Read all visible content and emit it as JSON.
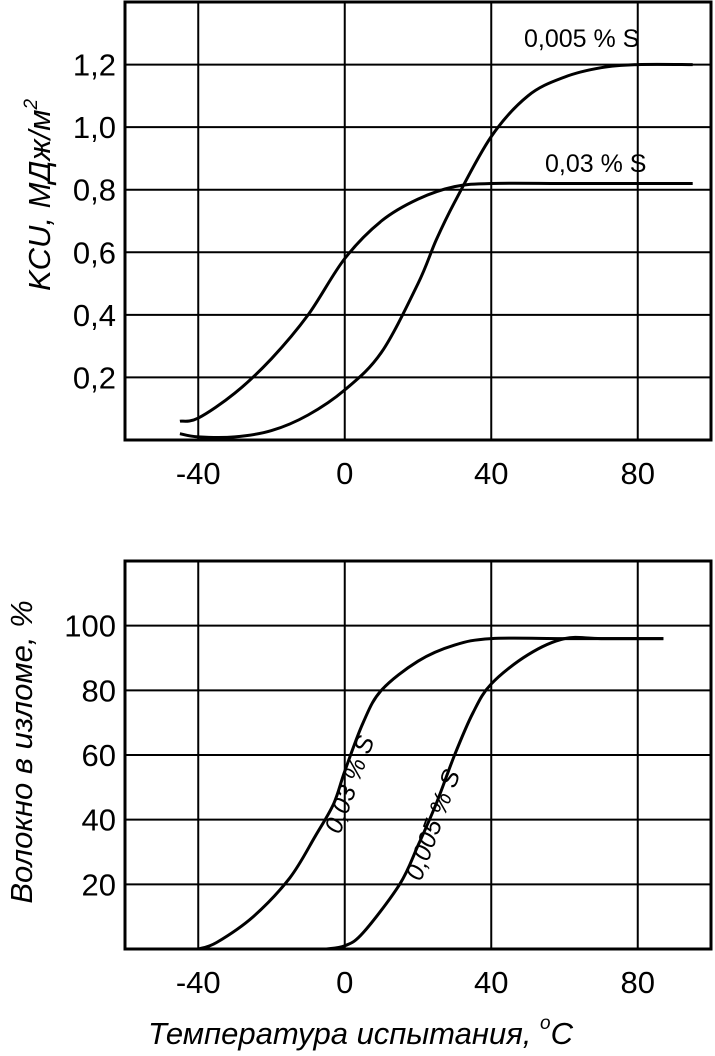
{
  "chart_data": [
    {
      "type": "line",
      "ylabel": "KCU, МДж/м",
      "ylabel_sup": "2",
      "xlim": [
        -60,
        100
      ],
      "ylim": [
        0,
        1.4
      ],
      "x_ticks": [
        -40,
        0,
        40,
        80
      ],
      "x_tick_labels": [
        "-40",
        "0",
        "40",
        "80"
      ],
      "y_ticks": [
        0.2,
        0.4,
        0.6,
        0.8,
        1.0,
        1.2
      ],
      "y_tick_labels": [
        "0,2",
        "0,4",
        "0,6",
        "0,8",
        "1,0",
        "1,2"
      ],
      "grid": true,
      "series": [
        {
          "name": "0,005 % S",
          "x": [
            -45,
            -40,
            -30,
            -20,
            -10,
            0,
            10,
            20,
            25,
            30,
            40,
            50,
            60,
            70,
            80,
            95
          ],
          "y": [
            0.02,
            0.01,
            0.01,
            0.03,
            0.08,
            0.16,
            0.28,
            0.5,
            0.64,
            0.76,
            0.97,
            1.1,
            1.16,
            1.19,
            1.2,
            1.2
          ]
        },
        {
          "name": "0,03 % S",
          "x": [
            -45,
            -40,
            -30,
            -20,
            -10,
            0,
            10,
            20,
            30,
            40,
            60,
            80,
            95
          ],
          "y": [
            0.06,
            0.07,
            0.15,
            0.26,
            0.4,
            0.58,
            0.7,
            0.77,
            0.81,
            0.82,
            0.82,
            0.82,
            0.82
          ]
        }
      ]
    },
    {
      "type": "line",
      "ylabel": "Волокно в изломе, %",
      "xlabel": "Температура испытания, ",
      "xlabel_unit": "C",
      "xlabel_unit_sup": "o",
      "xlim": [
        -60,
        100
      ],
      "ylim": [
        0,
        120
      ],
      "x_ticks": [
        -40,
        0,
        40,
        80
      ],
      "x_tick_labels": [
        "-40",
        "0",
        "40",
        "80"
      ],
      "y_ticks": [
        20,
        40,
        60,
        80,
        100
      ],
      "y_tick_labels": [
        "20",
        "40",
        "60",
        "80",
        "100"
      ],
      "grid": true,
      "series": [
        {
          "name": "0,03 % S",
          "x": [
            -40,
            -35,
            -25,
            -15,
            -8,
            -3,
            0,
            5,
            10,
            20,
            30,
            40,
            60,
            80,
            87
          ],
          "y": [
            0,
            2,
            10,
            22,
            35,
            45,
            55,
            70,
            80,
            89,
            94,
            96,
            96,
            96,
            96
          ]
        },
        {
          "name": "0,005 % S",
          "x": [
            -5,
            0,
            5,
            15,
            20,
            25,
            30,
            35,
            40,
            50,
            60,
            70,
            87
          ],
          "y": [
            0,
            1,
            5,
            20,
            32,
            45,
            60,
            73,
            82,
            91,
            96,
            96,
            96
          ]
        }
      ]
    }
  ]
}
